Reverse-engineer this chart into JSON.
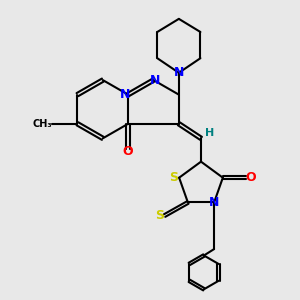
{
  "background_color": "#e8e8e8",
  "atom_colors": {
    "N": "#0000ff",
    "O": "#ff0000",
    "S": "#cccc00",
    "H": "#008080",
    "C": "#000000"
  },
  "bond_color": "#000000",
  "bond_width": 1.5,
  "figsize": [
    3.0,
    3.0
  ],
  "dpi": 100
}
